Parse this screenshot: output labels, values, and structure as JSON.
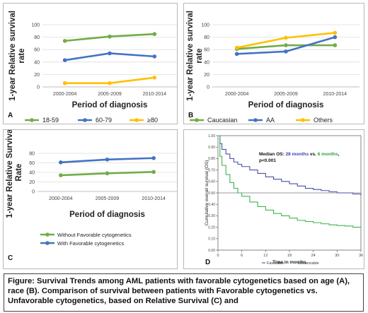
{
  "caption": "Figure: Survival Trends among AML patients with favorable cytogenetics based on age (A), race (B). Comparison of survival between patients with Favorable cytogenetics vs. Unfavorable cytogenetics, based on Relative Survival (C) and",
  "chart_data": [
    {
      "panel": "A",
      "type": "line",
      "ylabel": "1-year Relative survival rate",
      "xlabel": "Period of diagnosis",
      "categories": [
        "2000-2004",
        "2005-2009",
        "2010-2014"
      ],
      "ylim": [
        0,
        100
      ],
      "yticks": [
        0,
        20,
        40,
        60,
        80,
        100
      ],
      "legend_position": "bottom",
      "series": [
        {
          "name": "18-59",
          "values": [
            74,
            81,
            85
          ],
          "color": "#70ad47"
        },
        {
          "name": "60-79",
          "values": [
            43,
            54,
            49
          ],
          "color": "#4472c4"
        },
        {
          "name": "≥80",
          "values": [
            6,
            6,
            15
          ],
          "color": "#ffc000"
        }
      ]
    },
    {
      "panel": "B",
      "type": "line",
      "ylabel": "1-year Relative survival rate",
      "xlabel": "Period of diagnosis",
      "categories": [
        "2000-2004",
        "2005-2009",
        "2010-2014"
      ],
      "ylim": [
        0,
        100
      ],
      "yticks": [
        0,
        20,
        40,
        60,
        80,
        100
      ],
      "legend_position": "bottom",
      "series": [
        {
          "name": "Caucasian",
          "values": [
            61,
            67,
            67
          ],
          "color": "#70ad47"
        },
        {
          "name": "AA",
          "values": [
            53,
            57,
            80
          ],
          "color": "#4472c4"
        },
        {
          "name": "Others",
          "values": [
            63,
            79,
            87
          ],
          "color": "#ffc000"
        }
      ]
    },
    {
      "panel": "C",
      "type": "line",
      "ylabel": "1-year Relative Survival Rate",
      "xlabel": "Period of diagnosis",
      "categories": [
        "2000-2004",
        "2005-2009",
        "2010-2014"
      ],
      "ylim": [
        0,
        80
      ],
      "yticks": [
        0,
        20,
        40,
        60,
        80
      ],
      "legend_position": "bottom",
      "series": [
        {
          "name": "Without Favorable cytogenetics",
          "values": [
            34,
            38,
            41
          ],
          "color": "#70ad47"
        },
        {
          "name": "With Favorable cytogenetics",
          "values": [
            61,
            67,
            70
          ],
          "color": "#4472c4"
        }
      ]
    },
    {
      "panel": "D",
      "type": "line",
      "ylabel": "Cumulative overall survival (OS)",
      "xlabel": "Time in months",
      "xticks": [
        0,
        6,
        12,
        18,
        24,
        30,
        36
      ],
      "ylim": [
        0,
        1
      ],
      "yticks": [
        "0.00",
        "0.10",
        "0.20",
        "0.30",
        "0.40",
        "0.50",
        "0.60",
        "0.70",
        "0.80",
        "0.90",
        "1.00"
      ],
      "xlim": [
        0,
        36
      ],
      "reference_line_y": 0.5,
      "annotation": {
        "prefix": "Median OS: ",
        "favorable": "28 months",
        "vs": " vs. ",
        "unfavorable": "6 months",
        "suffix": ",",
        "p": "p<0.001"
      },
      "legend_position": "bottom",
      "series": [
        {
          "name": "Favorable",
          "color": "#4a4fa8",
          "x": [
            0,
            0.5,
            1,
            2,
            3,
            4,
            5,
            6,
            8,
            10,
            12,
            14,
            16,
            18,
            20,
            22,
            24,
            26,
            28,
            30,
            32,
            34,
            36
          ],
          "y": [
            1.0,
            0.93,
            0.88,
            0.84,
            0.8,
            0.77,
            0.75,
            0.73,
            0.7,
            0.67,
            0.64,
            0.62,
            0.6,
            0.58,
            0.56,
            0.54,
            0.53,
            0.52,
            0.51,
            0.5,
            0.5,
            0.49,
            0.48
          ]
        },
        {
          "name": "Unfavorable",
          "color": "#3fb34f",
          "x": [
            0,
            0.5,
            1,
            2,
            3,
            4,
            5,
            6,
            8,
            10,
            12,
            14,
            16,
            18,
            20,
            22,
            24,
            26,
            28,
            30,
            32,
            34,
            36
          ],
          "y": [
            1.0,
            0.82,
            0.74,
            0.66,
            0.59,
            0.54,
            0.5,
            0.47,
            0.42,
            0.38,
            0.35,
            0.32,
            0.3,
            0.28,
            0.26,
            0.25,
            0.24,
            0.23,
            0.22,
            0.215,
            0.21,
            0.2,
            0.2
          ]
        }
      ]
    }
  ]
}
